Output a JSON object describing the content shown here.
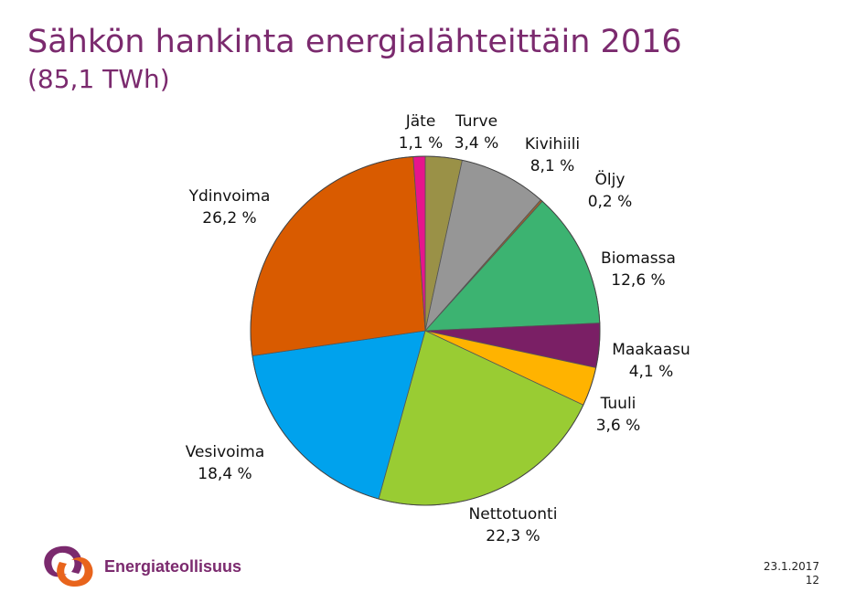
{
  "header": {
    "title": "Sähkön hankinta energialähteittäin 2016",
    "subtitle": "(85,1 TWh)"
  },
  "chart_data": {
    "type": "pie",
    "title": "Sähkön hankinta energialähteittäin 2016",
    "subtitle": "(85,1 TWh)",
    "start_angle_deg": 0,
    "direction": "clockwise",
    "slices": [
      {
        "label": "Turve",
        "value": 3.4,
        "value_label": "3,4 %",
        "color": "#9a9147"
      },
      {
        "label": "Kivihiili",
        "value": 8.1,
        "value_label": "8,1 %",
        "color": "#969696"
      },
      {
        "label": "Öljy",
        "value": 0.2,
        "value_label": "0,2 %",
        "color": "#a0622d"
      },
      {
        "label": "Biomassa",
        "value": 12.6,
        "value_label": "12,6 %",
        "color": "#3cb371"
      },
      {
        "label": "Maakaasu",
        "value": 4.1,
        "value_label": "4,1 %",
        "color": "#7a1f65"
      },
      {
        "label": "Tuuli",
        "value": 3.6,
        "value_label": "3,6 %",
        "color": "#ffb300"
      },
      {
        "label": "Nettotuonti",
        "value": 22.3,
        "value_label": "22,3 %",
        "color": "#99cc33"
      },
      {
        "label": "Vesivoima",
        "value": 18.4,
        "value_label": "18,4 %",
        "color": "#00a2ed"
      },
      {
        "label": "Ydinvoima",
        "value": 26.2,
        "value_label": "26,2 %",
        "color": "#d95b00"
      },
      {
        "label": "Jäte",
        "value": 1.1,
        "value_label": "1,1 %",
        "color": "#e6158c"
      }
    ]
  },
  "brand": {
    "name": "Energiateollisuus",
    "colors": {
      "purple": "#7b2a6e",
      "orange": "#e8641c"
    }
  },
  "footer": {
    "date": "23.1.2017",
    "page": "12"
  }
}
